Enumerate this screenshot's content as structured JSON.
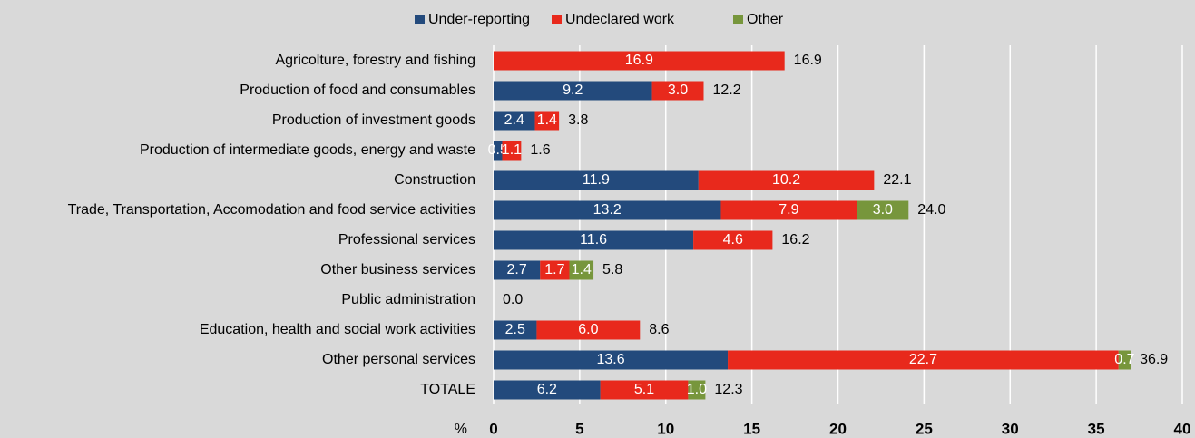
{
  "chart_data": {
    "type": "stacked-bar-horizontal",
    "categories": [
      "Agricolture, forestry and fishing",
      "Production of food and consumables",
      "Production of investment goods",
      "Production of intermediate goods, energy and waste",
      "Construction",
      "Trade, Transportation, Accomodation and food service activities",
      "Professional services",
      "Other business services",
      "Public administration",
      "Education, health and social work activities",
      "Other personal services",
      "TOTALE"
    ],
    "series": [
      {
        "name": "Under-reporting",
        "color": "#234a7c",
        "values": [
          null,
          9.2,
          2.4,
          0.5,
          11.9,
          13.2,
          11.6,
          2.7,
          null,
          2.5,
          13.6,
          6.2
        ],
        "value_labels": [
          null,
          "9.2",
          "2.4",
          "0.5",
          "11.9",
          "13.2",
          "11.6",
          "2.7",
          null,
          "2.5",
          "13.6",
          "6.2"
        ]
      },
      {
        "name": "Undeclared work",
        "color": "#e8291c",
        "values": [
          16.9,
          3.0,
          1.4,
          1.1,
          10.2,
          7.9,
          4.6,
          1.7,
          null,
          6.0,
          22.7,
          5.1
        ],
        "value_labels": [
          "16.9",
          "3.0",
          "1.4",
          "1.1",
          "10.2",
          "7.9",
          "4.6",
          "1.7",
          null,
          "6.0",
          "22.7",
          "5.1"
        ]
      },
      {
        "name": "Other",
        "color": "#77963c",
        "values": [
          null,
          null,
          null,
          null,
          null,
          3.0,
          null,
          1.4,
          null,
          null,
          0.7,
          1.0
        ],
        "value_labels": [
          null,
          null,
          null,
          null,
          null,
          "3.0",
          null,
          "1.4",
          null,
          null,
          "0.7",
          "1.0"
        ]
      }
    ],
    "totals": {
      "values": [
        16.9,
        12.2,
        3.8,
        1.6,
        22.1,
        24.0,
        16.2,
        5.8,
        0.0,
        8.6,
        36.9,
        12.3
      ],
      "value_labels": [
        "16.9",
        "12.2",
        "3.8",
        "1.6",
        "22.1",
        "24.0",
        "16.2",
        "5.8",
        "0.0",
        "8.6",
        "36.9",
        "12.3"
      ]
    },
    "x_label": "%",
    "xlim": [
      0,
      40
    ],
    "xticks": [
      0,
      5,
      10,
      15,
      20,
      25,
      30,
      35,
      40
    ],
    "grid": true
  }
}
